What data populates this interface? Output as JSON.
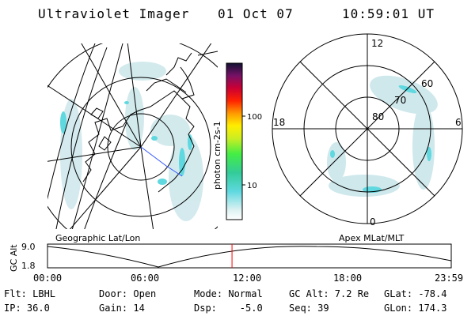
{
  "header": {
    "title": "Ultraviolet Imager",
    "date": "01 Oct 07",
    "time": "10:59:01 UT"
  },
  "colorbar": {
    "label": "photon cm-2s-1",
    "ticks": [
      "100",
      "10"
    ]
  },
  "polar_plot": {
    "mlt_labels": {
      "top": "12",
      "left": "18",
      "right": "6",
      "bottom": "0"
    },
    "lat_labels": [
      "80",
      "70",
      "60"
    ]
  },
  "panel_labels": {
    "left": "Geographic Lat/Lon",
    "right": "Apex MLat/MLT"
  },
  "altitude_plot": {
    "y_axis_label": "GC Alt",
    "y_ticks": [
      "9.0",
      "1.8"
    ],
    "x_ticks": [
      "00:00",
      "06:00",
      "12:00",
      "18:00",
      "23:59"
    ],
    "current_time_fraction": 0.457
  },
  "metadata": {
    "row1": {
      "flt": "Flt: LBHL",
      "door": "Door: Open",
      "mode": "Mode: Normal",
      "gcalt": "GC Alt: 7.2 Re",
      "glat": "GLat: -78.4"
    },
    "row2": {
      "ip": "IP: 36.0",
      "gain": "Gain: 14",
      "dsp": "Dsp:    -5.0",
      "seq": "Seq: 39",
      "glon": "GLon: 174.3"
    }
  },
  "colors": {
    "aurora": "#5fd8e0",
    "aurora_faint": "#cfe8ec",
    "marker": "#ff0000",
    "track": "#3355ff"
  }
}
